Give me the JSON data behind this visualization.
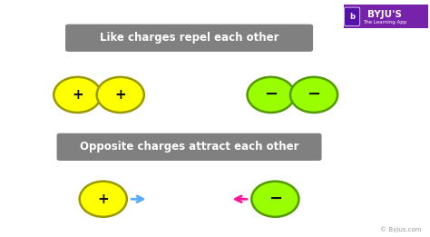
{
  "bg_color": "#ffffff",
  "title1": "Like charges repel each other",
  "title2": "Opposite charges attract each other",
  "title_box_color": "#808080",
  "title_text_color": "#ffffff",
  "plus_color": "#ffff00",
  "plus_edge_color": "#999900",
  "minus_color": "#99ff00",
  "minus_edge_color": "#559900",
  "symbol_color": "#111111",
  "arrow_blue_color": "#55aaff",
  "arrow_pink_color": "#ff1199",
  "byju_text": "© Byjus.com",
  "byju_color": "#999999",
  "byju_logo_bg": "#7722aa",
  "byju_logo_icon_bg": "#5511aa",
  "fig_width": 4.74,
  "fig_height": 2.61,
  "dpi": 100
}
